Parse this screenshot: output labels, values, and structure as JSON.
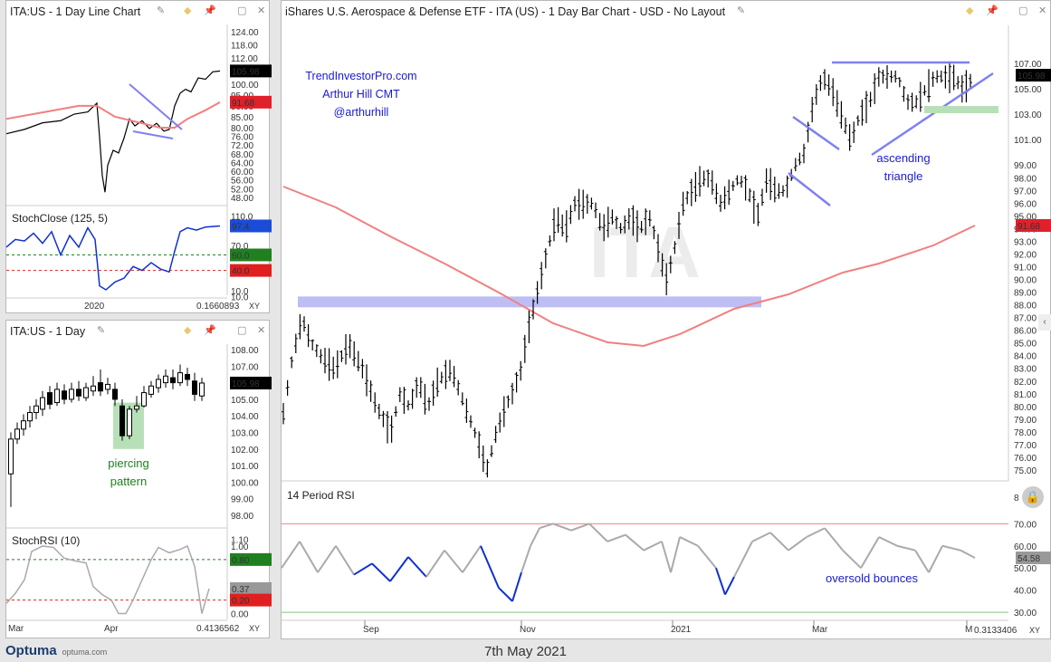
{
  "footer": {
    "date": "7th May 2021",
    "brand": "Optuma",
    "site": "optuma.com"
  },
  "main": {
    "title": "iShares U.S. Aerospace & Defense ETF - ITA (US) - 1 Day Bar Chart - USD - No Layout",
    "watermark": "ITA",
    "last_price": "105.98",
    "ma_value": "91.68",
    "y_ticks": [
      "107.00",
      "105.00",
      "103.00",
      "101.00",
      "99.00",
      "98.00",
      "97.00",
      "96.00",
      "95.00",
      "94.00",
      "93.00",
      "92.00",
      "91.00",
      "90.00",
      "89.00",
      "88.00",
      "87.00",
      "86.00",
      "85.00",
      "84.00",
      "83.00",
      "82.00",
      "81.00",
      "80.00",
      "79.00",
      "78.00",
      "77.00",
      "76.00",
      "75.00"
    ],
    "x_ticks": [
      "Sep",
      "Nov",
      "2021",
      "Mar",
      "M"
    ],
    "credit": [
      "TrendInvestorPro.com",
      "Arthur Hill CMT",
      "@arthurhill"
    ],
    "annotation_triangle": [
      "ascending",
      "triangle"
    ],
    "rsi_title": "14 Period RSI",
    "rsi_ticks": [
      "8",
      "70.00",
      "60.00",
      "50.00",
      "40.00",
      "30.00"
    ],
    "rsi_value": "54.58",
    "rsi_annotation": "oversold bounces",
    "corner_value": "0.3133406",
    "corner_xy": "XY"
  },
  "tl": {
    "title": "ITA:US - 1 Day Line Chart",
    "y_ticks": [
      "124.00",
      "118.00",
      "112.00",
      "106.00",
      "100.00",
      "95.00",
      "90.00",
      "85.00",
      "80.00",
      "76.00",
      "72.00",
      "68.00",
      "64.00",
      "60.00",
      "56.00",
      "52.00",
      "48.00"
    ],
    "last_price": "105.98",
    "ma_value": "91.68",
    "stoch_title": "StochClose (125, 5)",
    "stoch_ticks": [
      "110.0",
      "70.0",
      "60.0",
      "40.0",
      "10.0",
      "10.0"
    ],
    "stoch_value": "97.4",
    "stoch_upper": "60.0",
    "stoch_lower": "40.0",
    "x_tick": "2020",
    "corner_value": "0.1660893",
    "corner_xy": "XY"
  },
  "bl": {
    "title": "ITA:US - 1 Day",
    "y_ticks": [
      "108.00",
      "107.00",
      "106.00",
      "105.00",
      "104.00",
      "103.00",
      "102.00",
      "101.00",
      "100.00",
      "99.00",
      "98.00"
    ],
    "last_price": "105.98",
    "annotation": [
      "piercing",
      "pattern"
    ],
    "srsi_title": "StochRSI (10)",
    "srsi_ticks": [
      "1.10",
      "1.00",
      "0.80",
      "0.37",
      "0.20",
      "0.00"
    ],
    "srsi_value": "0.37",
    "srsi_upper": "0.80",
    "srsi_lower": "0.20",
    "x_ticks": [
      "Mar",
      "Apr"
    ],
    "corner_value": "0.4136562",
    "corner_xy": "XY"
  },
  "chart_data": [
    {
      "type": "bar",
      "title": "iShares U.S. Aerospace & Defense ETF - ITA (US) - 1 Day Bar Chart - USD - No Layout",
      "last": 105.98,
      "moving_average_last": 91.68,
      "ylim": [
        74,
        108
      ],
      "x_range": [
        "Jul 2020",
        "May 2021"
      ],
      "close_path": [
        [
          0,
          79.5
        ],
        [
          10,
          84
        ],
        [
          20,
          87
        ],
        [
          30,
          85
        ],
        [
          40,
          84
        ],
        [
          55,
          83
        ],
        [
          70,
          85
        ],
        [
          85,
          83
        ],
        [
          100,
          80
        ],
        [
          115,
          78
        ],
        [
          125,
          81
        ],
        [
          135,
          80
        ],
        [
          145,
          82
        ],
        [
          155,
          80
        ],
        [
          165,
          82
        ],
        [
          180,
          83
        ],
        [
          190,
          81
        ],
        [
          200,
          79
        ],
        [
          210,
          77
        ],
        [
          218,
          75
        ],
        [
          228,
          78
        ],
        [
          238,
          80
        ],
        [
          245,
          81
        ],
        [
          255,
          83
        ],
        [
          262,
          86
        ],
        [
          272,
          89
        ],
        [
          282,
          92
        ],
        [
          292,
          95
        ],
        [
          302,
          94
        ],
        [
          312,
          96
        ],
        [
          322,
          96
        ],
        [
          332,
          96
        ],
        [
          342,
          94
        ],
        [
          352,
          95
        ],
        [
          362,
          94
        ],
        [
          372,
          95
        ],
        [
          382,
          94
        ],
        [
          392,
          95
        ],
        [
          400,
          93
        ],
        [
          410,
          90
        ],
        [
          418,
          92
        ],
        [
          428,
          96
        ],
        [
          438,
          97
        ],
        [
          448,
          98
        ],
        [
          458,
          98
        ],
        [
          468,
          96
        ],
        [
          478,
          97
        ],
        [
          488,
          98
        ],
        [
          498,
          97
        ],
        [
          508,
          95
        ],
        [
          518,
          98
        ],
        [
          528,
          97
        ],
        [
          538,
          97
        ],
        [
          548,
          99
        ],
        [
          558,
          100
        ],
        [
          568,
          104
        ],
        [
          578,
          106
        ],
        [
          588,
          105
        ],
        [
          598,
          103
        ],
        [
          608,
          101
        ],
        [
          618,
          103
        ],
        [
          628,
          104
        ],
        [
          638,
          106
        ],
        [
          648,
          106
        ],
        [
          658,
          106
        ],
        [
          668,
          104
        ],
        [
          678,
          104
        ],
        [
          688,
          105
        ],
        [
          698,
          106
        ],
        [
          708,
          106
        ],
        [
          718,
          106
        ],
        [
          728,
          105
        ],
        [
          740,
          105.98
        ]
      ],
      "annotations": [
        "ascending triangle"
      ],
      "rsi": {
        "title": "14 Period RSI",
        "last": 54.58,
        "levels": [
          70,
          50,
          30
        ],
        "ylim": [
          28,
          82
        ]
      }
    },
    {
      "type": "line",
      "title": "ITA:US - 1 Day Line Chart",
      "last": 105.98,
      "moving_average_last": 91.68,
      "ylim": [
        45,
        126
      ],
      "stoch": {
        "title": "StochClose (125, 5)",
        "last": 97.4,
        "levels": [
          60,
          40
        ]
      }
    },
    {
      "type": "bar",
      "title": "ITA:US - 1 Day",
      "last": 105.98,
      "ylim": [
        97.5,
        108.5
      ],
      "annotations": [
        "piercing pattern"
      ],
      "stochrsi": {
        "title": "StochRSI (10)",
        "last": 0.37,
        "levels": [
          0.8,
          0.2
        ]
      }
    }
  ]
}
